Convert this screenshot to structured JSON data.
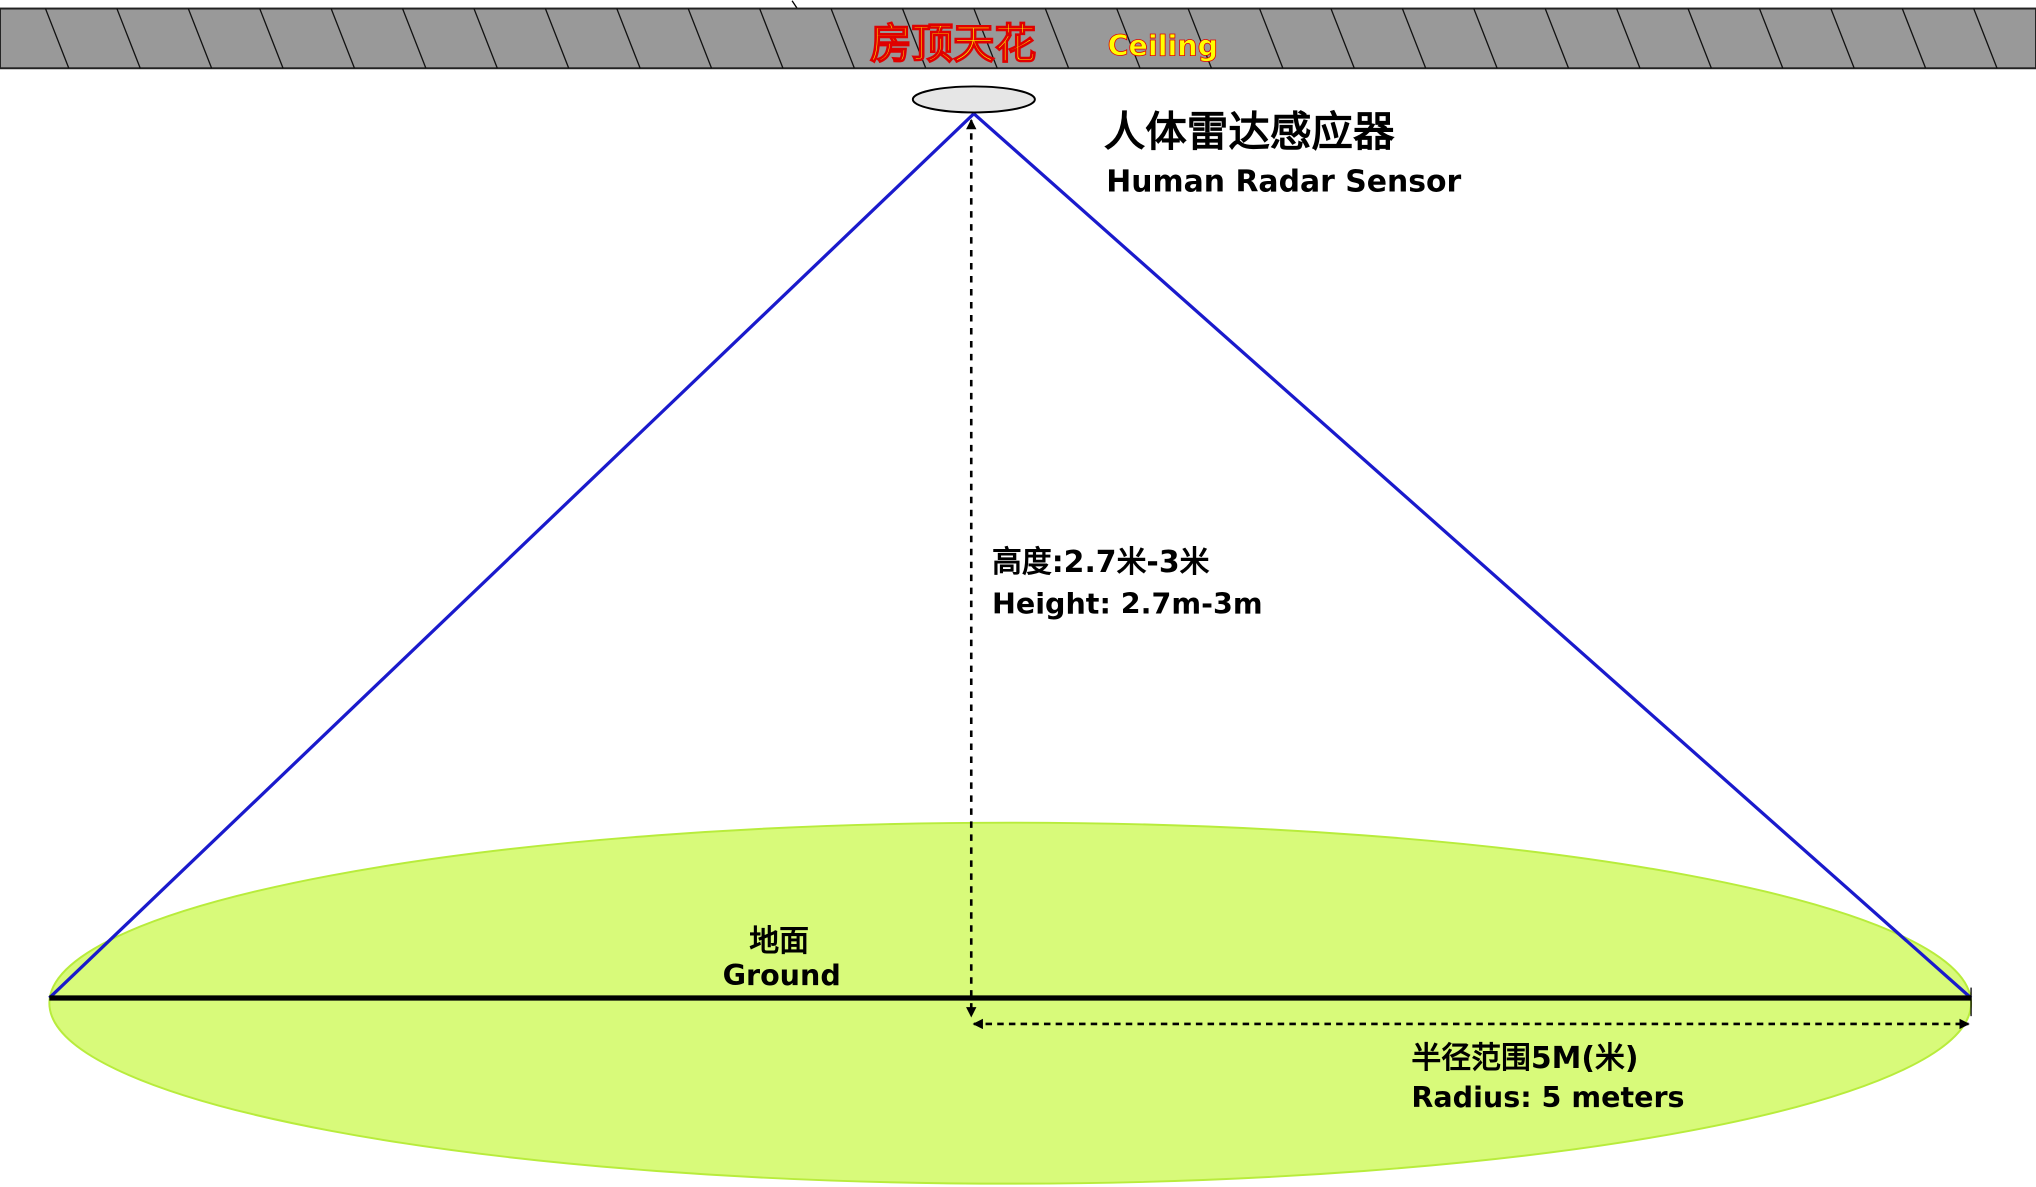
{
  "ceiling": {
    "label_cn": "房顶天花",
    "label_en": "Ceiling"
  },
  "sensor": {
    "label_cn": "人体雷达感应器",
    "label_en": "Human Radar Sensor"
  },
  "height": {
    "label_cn": "高度:2.7米-3米",
    "label_en": "Height: 2.7m-3m"
  },
  "ground": {
    "label_cn": "地面",
    "label_en": "Ground"
  },
  "radius": {
    "label_cn": "半径范围5M(米)",
    "label_en": "Radius: 5 meters"
  },
  "colors": {
    "ceiling": "#999999",
    "ceiling_text": "#ffff00",
    "ceiling_text_outline": "#e00000",
    "cone_lines": "#1a1acc",
    "detection_area": "#d8fa7a",
    "detection_area_border": "#b8ec3c",
    "sensor": "#e6e6e6"
  }
}
